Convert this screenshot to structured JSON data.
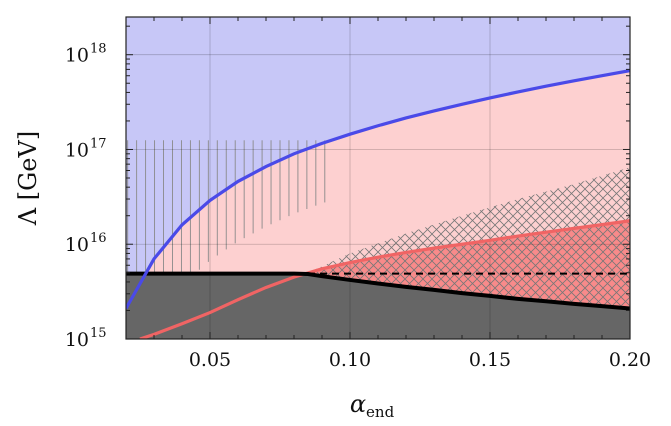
{
  "chart_data": {
    "type": "line",
    "title": "",
    "xlabel": "α",
    "xlabel_sub": "end",
    "ylabel": "Λ [GeV]",
    "xlim": [
      0.02,
      0.2
    ],
    "ylim": [
      1000000000000000.0,
      2.5e+18
    ],
    "y_scale": "log",
    "grid": true,
    "x_ticks": [
      {
        "value": 0.05,
        "label": "0.05"
      },
      {
        "value": 0.1,
        "label": "0.10"
      },
      {
        "value": 0.15,
        "label": "0.15"
      },
      {
        "value": 0.2,
        "label": "0.20"
      }
    ],
    "y_ticks": [
      {
        "value": 15,
        "base": "10",
        "exp": "15"
      },
      {
        "value": 16,
        "base": "10",
        "exp": "16"
      },
      {
        "value": 17,
        "base": "10",
        "exp": "17"
      },
      {
        "value": 18,
        "base": "10",
        "exp": "18"
      }
    ],
    "colors": {
      "blue_region": "#c7c7f7",
      "pink_region": "#fdd0d0",
      "gray_region": "#666666",
      "blue_curve": "#4a4ae8",
      "red_curve": "#f06464",
      "black_curve": "#000000"
    },
    "series": [
      {
        "key": "blue",
        "x": [
          0.02,
          0.03,
          0.04,
          0.05,
          0.06,
          0.07,
          0.08,
          0.09,
          0.1,
          0.11,
          0.12,
          0.13,
          0.14,
          0.15,
          0.16,
          0.17,
          0.18,
          0.19,
          0.2
        ],
        "y": [
          2100000000000000.0,
          7000000000000000.0,
          1.6e+16,
          2.9e+16,
          4.6e+16,
          6.6e+16,
          9e+16,
          1.16e+17,
          1.45e+17,
          1.78e+17,
          2.15e+17,
          2.55e+17,
          3e+17,
          3.5e+17,
          4.05e+17,
          4.65e+17,
          5.3e+17,
          6e+17,
          6.8e+17
        ]
      },
      {
        "key": "red",
        "x": [
          0.025,
          0.03,
          0.04,
          0.05,
          0.06,
          0.07,
          0.08,
          0.09,
          0.1,
          0.11,
          0.12,
          0.13,
          0.14,
          0.15,
          0.16,
          0.17,
          0.18,
          0.19,
          0.2
        ],
        "y": [
          1000000000000000.0,
          1120000000000000.0,
          1450000000000000.0,
          1900000000000000.0,
          2600000000000000.0,
          3500000000000000.0,
          4500000000000000.0,
          5500000000000000.0,
          6400000000000000.0,
          7300000000000000.0,
          8200000000000000.0,
          9100000000000000.0,
          1e+16,
          1.1e+16,
          1.22e+16,
          1.34e+16,
          1.47e+16,
          1.61e+16,
          1.77e+16
        ]
      },
      {
        "key": "black",
        "x": [
          0.02,
          0.05,
          0.08,
          0.085,
          0.09,
          0.1,
          0.11,
          0.12,
          0.13,
          0.14,
          0.15,
          0.16,
          0.17,
          0.18,
          0.19,
          0.2
        ],
        "y": [
          4900000000000000.0,
          4900000000000000.0,
          4900000000000000.0,
          4850000000000000.0,
          4600000000000000.0,
          4200000000000000.0,
          3850000000000000.0,
          3550000000000000.0,
          3300000000000000.0,
          3050000000000000.0,
          2850000000000000.0,
          2650000000000000.0,
          2500000000000000.0,
          2350000000000000.0,
          2220000000000000.0,
          2100000000000000.0
        ]
      },
      {
        "key": "black-dashed",
        "x": [
          0.085,
          0.2
        ],
        "y": [
          4900000000000000.0,
          4900000000000000.0
        ]
      }
    ],
    "hatch_vertical": {
      "x_range": [
        0.02,
        0.095
      ],
      "y_top": 1.25e+17,
      "lower_bound": "blue"
    },
    "hatch_cross": {
      "x_range": [
        0.085,
        0.2
      ],
      "y_top": [
        {
          "x": 0.085,
          "y": 5000000000000000.0
        },
        {
          "x": 0.1,
          "y": 8000000000000000.0
        },
        {
          "x": 0.12,
          "y": 1.3e+16
        },
        {
          "x": 0.14,
          "y": 2e+16
        },
        {
          "x": 0.16,
          "y": 3e+16
        },
        {
          "x": 0.18,
          "y": 4.3e+16
        },
        {
          "x": 0.2,
          "y": 6.5e+16
        }
      ],
      "lower_bound": "black"
    }
  }
}
